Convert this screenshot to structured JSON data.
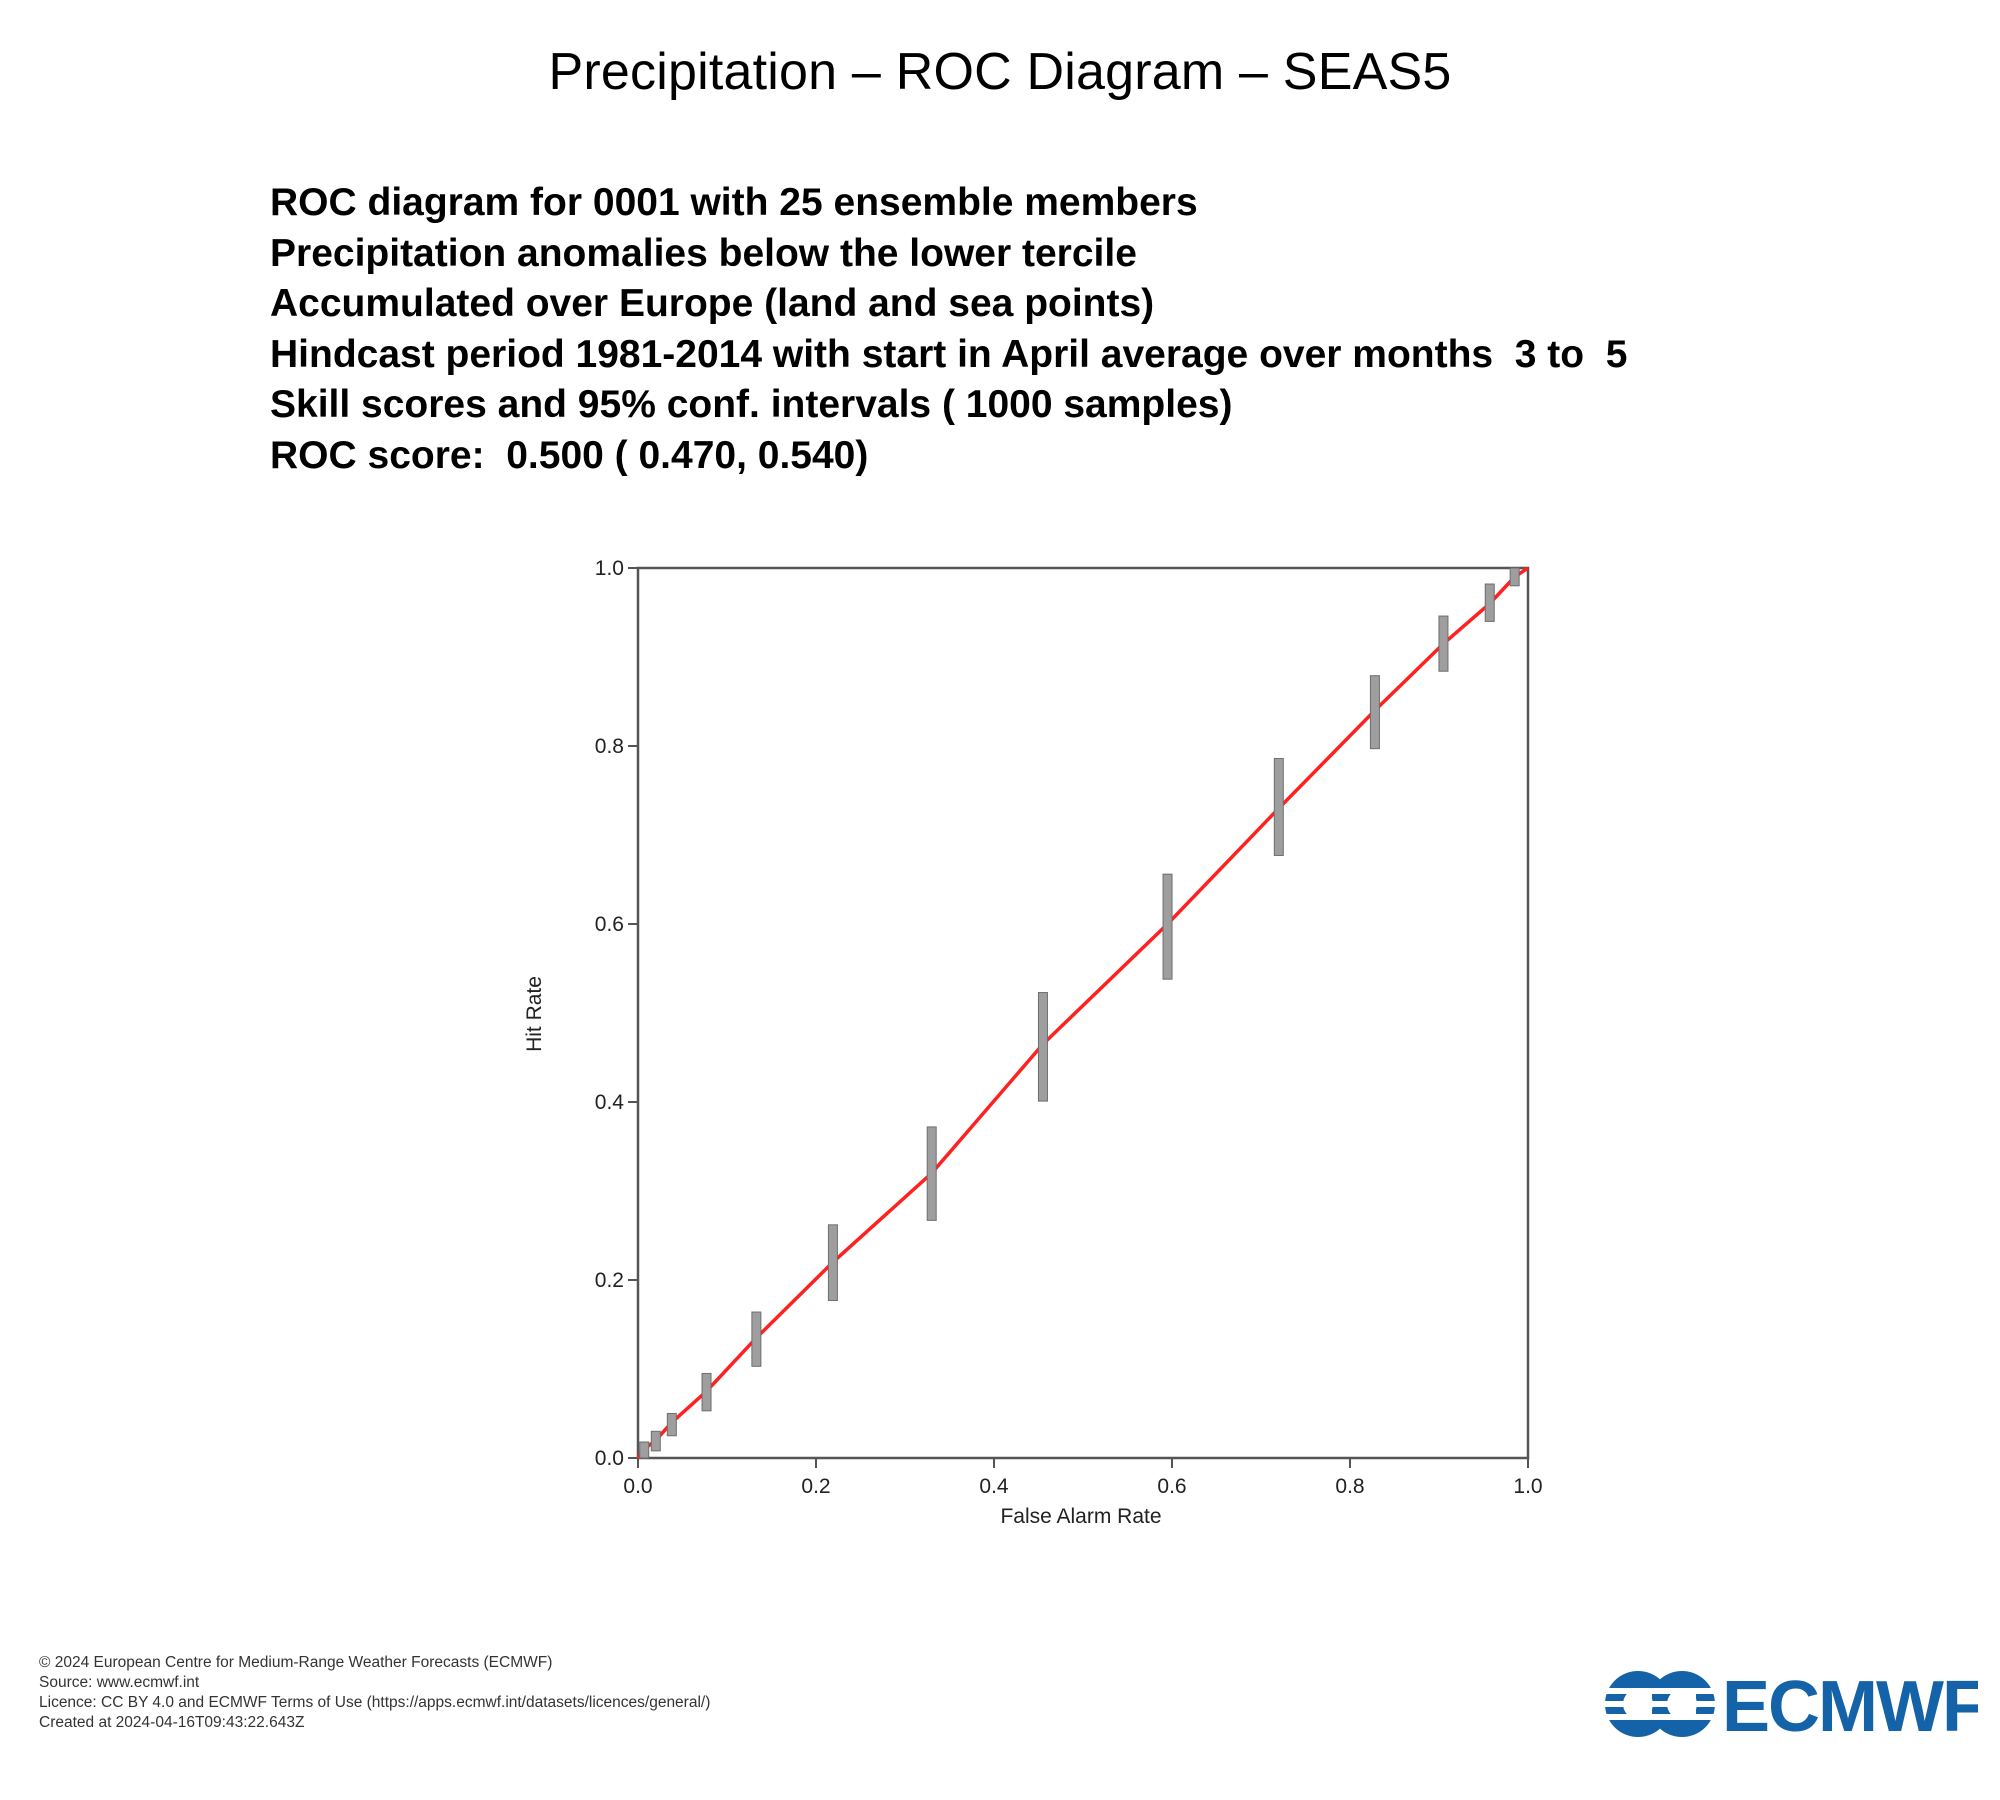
{
  "title": "Precipitation – ROC Diagram – SEAS5",
  "info_lines": [
    "ROC diagram for 0001 with 25 ensemble members",
    "Precipitation anomalies below the lower tercile",
    "Accumulated over Europe (land and sea points)",
    "Hindcast period 1981-2014 with start in April average over months  3 to  5",
    "Skill scores and 95% conf. intervals ( 1000 samples)",
    "ROC score:  0.500 ( 0.470, 0.540)"
  ],
  "chart_data": {
    "type": "line",
    "xlabel": "False Alarm Rate",
    "ylabel": "Hit Rate",
    "xlim": [
      0,
      1
    ],
    "ylim": [
      0,
      1
    ],
    "xticks": [
      "0.0",
      "0.2",
      "0.4",
      "0.6",
      "0.8",
      "1.0"
    ],
    "yticks": [
      "0.0",
      "0.2",
      "0.4",
      "0.6",
      "0.8",
      "1.0"
    ],
    "series_color": "#ff2020",
    "errorbar_color": "#9e9e9e",
    "points": [
      {
        "x": 0.0,
        "y": 0.0,
        "ylo": 0.0,
        "yhi": 0.0
      },
      {
        "x": 0.007,
        "y": 0.01,
        "ylo": 0.0,
        "yhi": 0.018
      },
      {
        "x": 0.02,
        "y": 0.02,
        "ylo": 0.008,
        "yhi": 0.03
      },
      {
        "x": 0.038,
        "y": 0.04,
        "ylo": 0.025,
        "yhi": 0.05
      },
      {
        "x": 0.077,
        "y": 0.075,
        "ylo": 0.053,
        "yhi": 0.095
      },
      {
        "x": 0.133,
        "y": 0.135,
        "ylo": 0.103,
        "yhi": 0.164
      },
      {
        "x": 0.219,
        "y": 0.22,
        "ylo": 0.177,
        "yhi": 0.262
      },
      {
        "x": 0.33,
        "y": 0.32,
        "ylo": 0.267,
        "yhi": 0.372
      },
      {
        "x": 0.455,
        "y": 0.465,
        "ylo": 0.401,
        "yhi": 0.523
      },
      {
        "x": 0.595,
        "y": 0.6,
        "ylo": 0.538,
        "yhi": 0.656
      },
      {
        "x": 0.72,
        "y": 0.73,
        "ylo": 0.677,
        "yhi": 0.786
      },
      {
        "x": 0.828,
        "y": 0.84,
        "ylo": 0.797,
        "yhi": 0.879
      },
      {
        "x": 0.905,
        "y": 0.915,
        "ylo": 0.884,
        "yhi": 0.946
      },
      {
        "x": 0.957,
        "y": 0.96,
        "ylo": 0.94,
        "yhi": 0.982
      },
      {
        "x": 0.985,
        "y": 0.99,
        "ylo": 0.98,
        "yhi": 1.0
      },
      {
        "x": 1.0,
        "y": 1.0,
        "ylo": 1.0,
        "yhi": 1.0
      }
    ]
  },
  "footer": {
    "copyright": "© 2024 European Centre for Medium-Range Weather Forecasts (ECMWF)",
    "source": "Source: www.ecmwf.int",
    "licence": "Licence: CC BY 4.0 and ECMWF Terms of Use (https://apps.ecmwf.int/datasets/licences/general/)",
    "created": "Created at 2024-04-16T09:43:22.643Z"
  },
  "logo": {
    "text": "ECMWF",
    "color": "#1462a8",
    "icon": "ecmwf-waves-icon"
  }
}
